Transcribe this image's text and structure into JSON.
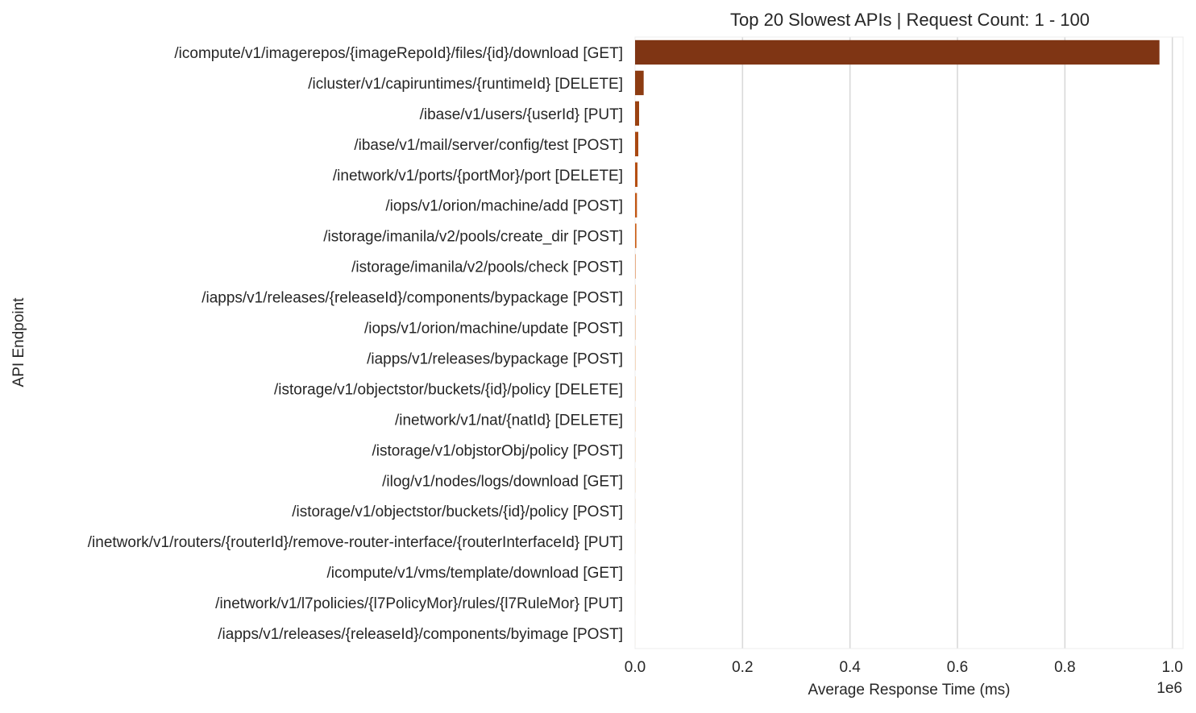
{
  "chart_data": {
    "type": "bar",
    "orientation": "horizontal",
    "title": "Top 20 Slowest APIs | Request Count: 1 - 100",
    "xlabel": "Average Response Time (ms)",
    "ylabel": "API Endpoint",
    "x_scale_label": "1e6",
    "xlim": [
      0,
      1.02
    ],
    "xticks": [
      0.0,
      0.2,
      0.4,
      0.6,
      0.8,
      1.0
    ],
    "xtick_labels": [
      "0.0",
      "0.2",
      "0.4",
      "0.6",
      "0.8",
      "1.0"
    ],
    "grid": "vertical",
    "categories": [
      "/icompute/v1/imagerepos/{imageRepoId}/files/{id}/download [GET]",
      "/icluster/v1/capiruntimes/{runtimeId} [DELETE]",
      "/ibase/v1/users/{userId} [PUT]",
      "/ibase/v1/mail/server/config/test [POST]",
      "/inetwork/v1/ports/{portMor}/port [DELETE]",
      "/iops/v1/orion/machine/add [POST]",
      "/istorage/imanila/v2/pools/create_dir [POST]",
      "/istorage/imanila/v2/pools/check [POST]",
      "/iapps/v1/releases/{releaseId}/components/bypackage [POST]",
      "/iops/v1/orion/machine/update [POST]",
      "/iapps/v1/releases/bypackage [POST]",
      "/istorage/v1/objectstor/buckets/{id}/policy [DELETE]",
      "/inetwork/v1/nat/{natId} [DELETE]",
      "/istorage/v1/objstorObj/policy [POST]",
      "/ilog/v1/nodes/logs/download [GET]",
      "/istorage/v1/objectstor/buckets/{id}/policy [POST]",
      "/inetwork/v1/routers/{routerId}/remove-router-interface/{routerInterfaceId} [PUT]",
      "/icompute/v1/vms/template/download [GET]",
      "/inetwork/v1/l7policies/{l7PolicyMor}/rules/{l7RuleMor} [PUT]",
      "/iapps/v1/releases/{releaseId}/components/byimage [POST]"
    ],
    "values": [
      976000,
      16000,
      7500,
      6000,
      4500,
      3500,
      2500,
      800,
      600,
      500,
      450,
      400,
      350,
      300,
      250,
      200,
      150,
      120,
      100,
      80
    ],
    "colors": [
      "#7f3514",
      "#8c3c12",
      "#9a4211",
      "#a84811",
      "#b54f12",
      "#c15714",
      "#cb5f17",
      "#d4681c",
      "#db7022",
      "#e17928",
      "#e6822f",
      "#ea8b37",
      "#ed9440",
      "#f09d49",
      "#f2a553",
      "#f4ad5d",
      "#f6b567",
      "#f8bd71",
      "#f9c47b",
      "#facb85"
    ]
  }
}
